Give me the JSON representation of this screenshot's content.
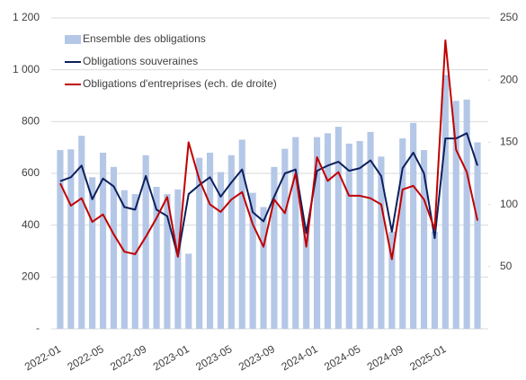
{
  "chart_data": {
    "type": "bar_line",
    "categories": [
      "2022-01",
      null,
      null,
      null,
      "2022-05",
      null,
      null,
      null,
      "2022-09",
      null,
      null,
      null,
      "2023-01",
      null,
      null,
      null,
      "2023-05",
      null,
      null,
      null,
      "2023-09",
      null,
      null,
      null,
      "2024-01",
      null,
      null,
      null,
      "2024-05",
      null,
      null,
      null,
      "2024-09",
      null,
      null,
      null,
      "2025-01",
      null,
      null,
      null
    ],
    "series": [
      {
        "name": "Ensemble des obligations",
        "color": "#b4c7e7",
        "kind": "bar",
        "axis": "y",
        "values": [
          690,
          693,
          745,
          585,
          680,
          625,
          535,
          520,
          670,
          548,
          520,
          538,
          290,
          660,
          680,
          605,
          670,
          730,
          525,
          470,
          625,
          695,
          740,
          395,
          740,
          755,
          780,
          715,
          725,
          760,
          665,
          375,
          735,
          795,
          690,
          375,
          980,
          880,
          885,
          720
        ]
      },
      {
        "name": "Obligations souveraines",
        "color": "#0d1f5c",
        "kind": "line",
        "axis": "y",
        "values": [
          570,
          585,
          630,
          500,
          580,
          550,
          470,
          460,
          590,
          460,
          435,
          280,
          520,
          555,
          585,
          510,
          565,
          615,
          450,
          415,
          510,
          600,
          615,
          370,
          610,
          630,
          645,
          610,
          620,
          650,
          590,
          375,
          620,
          680,
          600,
          350,
          735,
          735,
          755,
          630
        ]
      },
      {
        "name": "Obligations d'entreprises (ech. de droite)",
        "color": "#c00000",
        "kind": "line",
        "axis": "y2",
        "values": [
          117,
          99,
          105,
          86,
          92,
          76,
          62,
          60,
          74,
          89,
          106,
          58,
          150,
          120,
          100,
          94,
          104,
          110,
          84,
          66,
          104,
          93,
          125,
          66,
          138,
          119,
          126,
          107,
          107,
          105,
          100,
          56,
          112,
          115,
          104,
          80,
          232,
          144,
          126,
          87
        ]
      }
    ],
    "ylim": [
      0,
      1200
    ],
    "yticks": [
      {
        "value": 0,
        "label": "-"
      },
      200,
      400,
      600,
      800,
      {
        "value": 1000,
        "label": "1 000"
      },
      {
        "value": 1200,
        "label": "1 200"
      }
    ],
    "y2lim": [
      0,
      250
    ],
    "y2ticks": [
      50,
      100,
      150,
      200,
      250
    ],
    "grid": true,
    "legend": "top-left"
  }
}
